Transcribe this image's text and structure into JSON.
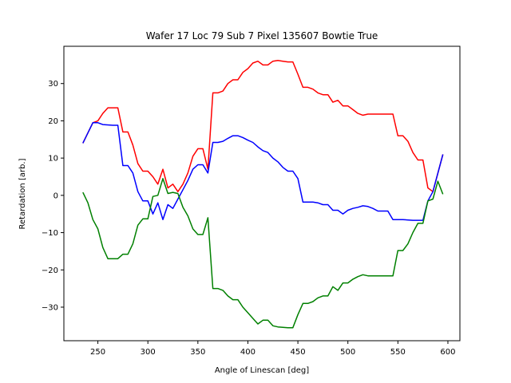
{
  "chart_data": {
    "type": "line",
    "title": "Wafer 17 Loc 79 Sub 7 Pixel 135607 Bowtie True",
    "xlabel": "Angle of Linescan [deg]",
    "ylabel": "Retardation [arb.]",
    "xlim": [
      216,
      612
    ],
    "ylim": [
      -39,
      40
    ],
    "xticks": [
      250,
      300,
      350,
      400,
      450,
      500,
      550,
      600
    ],
    "yticks": [
      -30,
      -20,
      -10,
      0,
      10,
      20,
      30
    ],
    "grid": false,
    "legend": "none",
    "series": [
      {
        "color": "#ff0000",
        "points": [
          [
            235,
            14
          ],
          [
            245,
            19.5
          ],
          [
            250,
            20
          ],
          [
            255,
            22
          ],
          [
            260,
            23.5
          ],
          [
            270,
            23.5
          ],
          [
            275,
            17
          ],
          [
            280,
            17
          ],
          [
            285,
            13.5
          ],
          [
            290,
            8.5
          ],
          [
            295,
            6.5
          ],
          [
            300,
            6.5
          ],
          [
            305,
            5
          ],
          [
            310,
            3
          ],
          [
            315,
            7
          ],
          [
            320,
            2
          ],
          [
            325,
            3
          ],
          [
            330,
            1
          ],
          [
            335,
            3
          ],
          [
            340,
            6
          ],
          [
            345,
            10.5
          ],
          [
            350,
            12.5
          ],
          [
            355,
            12.5
          ],
          [
            360,
            7
          ],
          [
            365,
            27.5
          ],
          [
            370,
            27.5
          ],
          [
            375,
            28
          ],
          [
            380,
            30
          ],
          [
            385,
            31
          ],
          [
            390,
            31
          ],
          [
            395,
            33
          ],
          [
            400,
            34
          ],
          [
            405,
            35.5
          ],
          [
            410,
            36
          ],
          [
            415,
            35
          ],
          [
            420,
            35
          ],
          [
            425,
            36
          ],
          [
            430,
            36.2
          ],
          [
            435,
            36
          ],
          [
            440,
            35.8
          ],
          [
            445,
            35.8
          ],
          [
            450,
            32.5
          ],
          [
            455,
            29
          ],
          [
            460,
            29
          ],
          [
            465,
            28.5
          ],
          [
            470,
            27.5
          ],
          [
            475,
            27
          ],
          [
            480,
            27
          ],
          [
            485,
            25
          ],
          [
            490,
            25.5
          ],
          [
            495,
            24
          ],
          [
            500,
            24
          ],
          [
            505,
            23
          ],
          [
            510,
            22
          ],
          [
            515,
            21.5
          ],
          [
            520,
            21.8
          ],
          [
            530,
            21.8
          ],
          [
            545,
            21.8
          ],
          [
            550,
            16
          ],
          [
            555,
            16
          ],
          [
            560,
            14.5
          ],
          [
            565,
            11.5
          ],
          [
            570,
            9.5
          ],
          [
            575,
            9.5
          ],
          [
            580,
            2
          ],
          [
            585,
            1
          ],
          [
            595,
            11
          ]
        ]
      },
      {
        "color": "#0000ff",
        "points": [
          [
            235,
            14
          ],
          [
            245,
            19.5
          ],
          [
            250,
            19.5
          ],
          [
            255,
            19
          ],
          [
            265,
            18.8
          ],
          [
            270,
            18.8
          ],
          [
            275,
            8
          ],
          [
            280,
            8
          ],
          [
            285,
            6
          ],
          [
            290,
            1
          ],
          [
            295,
            -1.5
          ],
          [
            300,
            -1.5
          ],
          [
            305,
            -5
          ],
          [
            310,
            -2
          ],
          [
            315,
            -6.5
          ],
          [
            320,
            -2.5
          ],
          [
            325,
            -3.5
          ],
          [
            330,
            -1
          ],
          [
            335,
            1.5
          ],
          [
            340,
            4
          ],
          [
            345,
            7
          ],
          [
            350,
            8.2
          ],
          [
            355,
            8.2
          ],
          [
            360,
            6
          ],
          [
            365,
            14.2
          ],
          [
            370,
            14.2
          ],
          [
            375,
            14.5
          ],
          [
            380,
            15.3
          ],
          [
            385,
            16
          ],
          [
            390,
            16
          ],
          [
            395,
            15.5
          ],
          [
            400,
            14.8
          ],
          [
            405,
            14.2
          ],
          [
            410,
            13
          ],
          [
            415,
            12
          ],
          [
            420,
            11.5
          ],
          [
            425,
            10
          ],
          [
            430,
            9
          ],
          [
            435,
            7.5
          ],
          [
            440,
            6.5
          ],
          [
            445,
            6.5
          ],
          [
            450,
            4.5
          ],
          [
            455,
            -1.8
          ],
          [
            460,
            -1.8
          ],
          [
            465,
            -1.8
          ],
          [
            470,
            -2
          ],
          [
            475,
            -2.5
          ],
          [
            480,
            -2.5
          ],
          [
            485,
            -4
          ],
          [
            490,
            -4
          ],
          [
            495,
            -5
          ],
          [
            500,
            -4
          ],
          [
            505,
            -3.5
          ],
          [
            510,
            -3.2
          ],
          [
            515,
            -2.8
          ],
          [
            520,
            -3
          ],
          [
            525,
            -3.5
          ],
          [
            530,
            -4.2
          ],
          [
            540,
            -4.2
          ],
          [
            545,
            -6.5
          ],
          [
            555,
            -6.5
          ],
          [
            565,
            -6.7
          ],
          [
            570,
            -6.7
          ],
          [
            575,
            -6.7
          ],
          [
            580,
            -1.5
          ],
          [
            585,
            1
          ],
          [
            595,
            11
          ]
        ]
      },
      {
        "color": "#008000",
        "points": [
          [
            235,
            0.8
          ],
          [
            240,
            -2
          ],
          [
            245,
            -6.5
          ],
          [
            250,
            -9
          ],
          [
            255,
            -14
          ],
          [
            260,
            -17
          ],
          [
            270,
            -17
          ],
          [
            275,
            -15.8
          ],
          [
            280,
            -15.8
          ],
          [
            285,
            -13
          ],
          [
            290,
            -8
          ],
          [
            295,
            -6.3
          ],
          [
            300,
            -6.3
          ],
          [
            305,
            -0.3
          ],
          [
            310,
            0
          ],
          [
            315,
            4.5
          ],
          [
            320,
            0.5
          ],
          [
            325,
            0.8
          ],
          [
            330,
            0.5
          ],
          [
            335,
            -3.2
          ],
          [
            340,
            -5.5
          ],
          [
            345,
            -9
          ],
          [
            350,
            -10.5
          ],
          [
            355,
            -10.5
          ],
          [
            360,
            -6
          ],
          [
            365,
            -25
          ],
          [
            370,
            -25
          ],
          [
            375,
            -25.5
          ],
          [
            380,
            -27
          ],
          [
            385,
            -28
          ],
          [
            390,
            -28
          ],
          [
            395,
            -30
          ],
          [
            400,
            -31.5
          ],
          [
            405,
            -33
          ],
          [
            410,
            -34.5
          ],
          [
            415,
            -33.5
          ],
          [
            420,
            -33.5
          ],
          [
            425,
            -35
          ],
          [
            430,
            -35.3
          ],
          [
            440,
            -35.5
          ],
          [
            445,
            -35.5
          ],
          [
            450,
            -32
          ],
          [
            455,
            -29
          ],
          [
            460,
            -29
          ],
          [
            465,
            -28.5
          ],
          [
            470,
            -27.5
          ],
          [
            475,
            -27
          ],
          [
            480,
            -27
          ],
          [
            485,
            -24.5
          ],
          [
            490,
            -25.5
          ],
          [
            495,
            -23.5
          ],
          [
            500,
            -23.5
          ],
          [
            505,
            -22.5
          ],
          [
            510,
            -21.8
          ],
          [
            515,
            -21.3
          ],
          [
            520,
            -21.6
          ],
          [
            530,
            -21.6
          ],
          [
            545,
            -21.6
          ],
          [
            550,
            -14.8
          ],
          [
            555,
            -14.8
          ],
          [
            560,
            -13
          ],
          [
            565,
            -10
          ],
          [
            570,
            -7.5
          ],
          [
            575,
            -7.5
          ],
          [
            580,
            -1.5
          ],
          [
            585,
            -1
          ],
          [
            590,
            3.8
          ],
          [
            595,
            0.3
          ]
        ]
      }
    ]
  }
}
